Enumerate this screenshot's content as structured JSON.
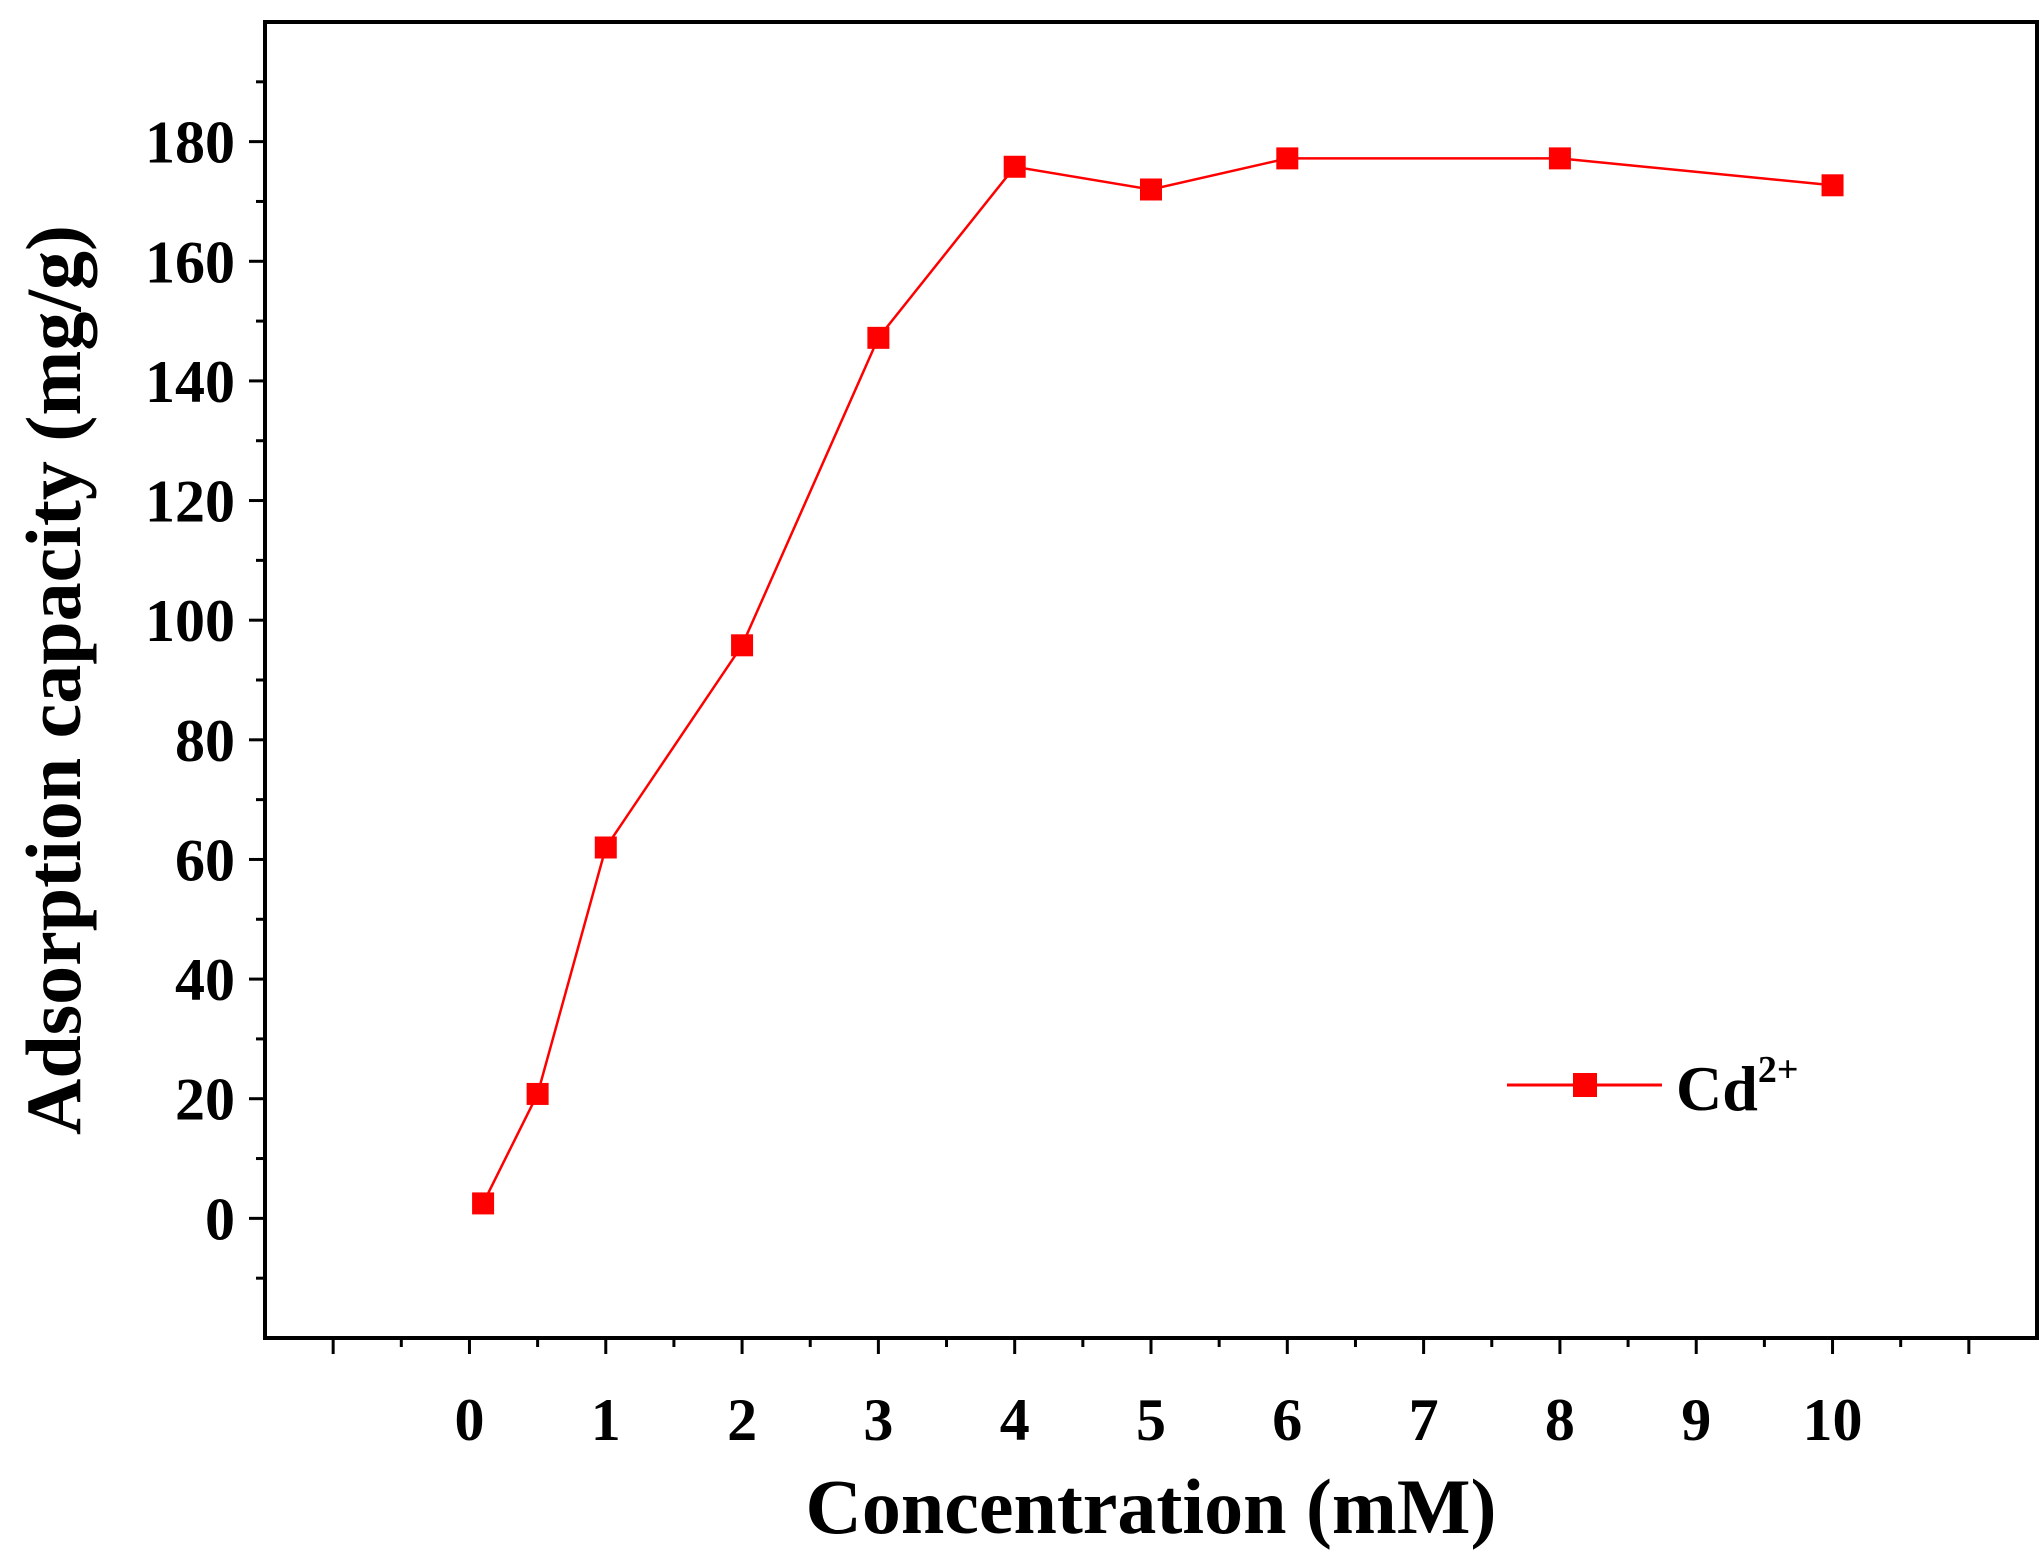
{
  "chart_data": {
    "type": "line",
    "title": "",
    "xlabel": "Concentration (mM)",
    "ylabel": "Adsorption capacity (mg/g)",
    "x_tick_labels": [
      "0",
      "1",
      "2",
      "3",
      "4",
      "5",
      "6",
      "7",
      "8",
      "9",
      "10"
    ],
    "y_tick_values": [
      0,
      20,
      40,
      60,
      80,
      100,
      120,
      140,
      160,
      180
    ],
    "y_tick_labels": [
      "0",
      "20",
      "40",
      "60",
      "80",
      "100",
      "120",
      "140",
      "160",
      "180"
    ],
    "xlim": [
      -1.5,
      11.5
    ],
    "ylim": [
      -20,
      200
    ],
    "grid": false,
    "series": [
      {
        "name": "Cd",
        "name_superscript": "2+",
        "color": "#ff0000",
        "marker": "square",
        "points": [
          {
            "x": 0.1,
            "y": 2.5
          },
          {
            "x": 0.5,
            "y": 20.8
          },
          {
            "x": 1,
            "y": 62
          },
          {
            "x": 2,
            "y": 95.8
          },
          {
            "x": 3,
            "y": 147.2
          },
          {
            "x": 4,
            "y": 175.8
          },
          {
            "x": 5,
            "y": 172
          },
          {
            "x": 6,
            "y": 177.2
          },
          {
            "x": 8,
            "y": 177.2
          },
          {
            "x": 10,
            "y": 172.7
          }
        ]
      }
    ],
    "legend": {
      "position": "bottom-right"
    }
  }
}
